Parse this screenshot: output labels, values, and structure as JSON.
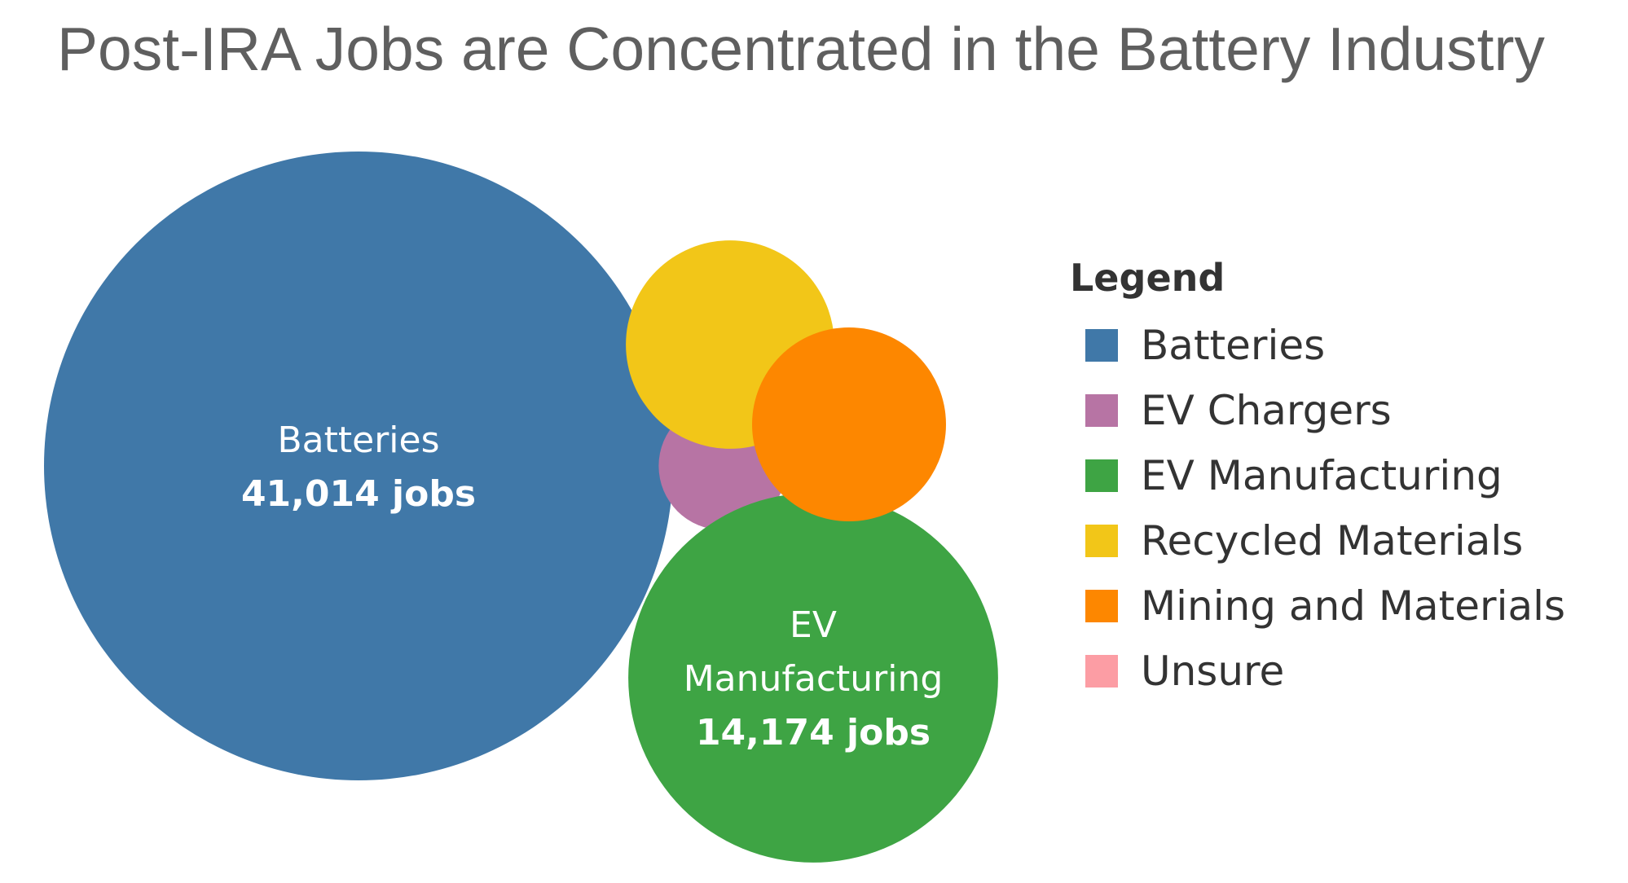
{
  "chart_data": {
    "type": "bubble",
    "title": "Post-IRA Jobs are Concentrated in the Battery Industry",
    "legend_title": "Legend",
    "legend_position": "right",
    "series": [
      {
        "name": "Batteries",
        "value": 41014,
        "color": "#4078a8",
        "label": "Batteries",
        "value_label": "41,014 jobs"
      },
      {
        "name": "EV Chargers",
        "value": 1700,
        "color": "#b774a4",
        "label": "",
        "value_label": ""
      },
      {
        "name": "EV Manufacturing",
        "value": 14174,
        "color": "#3ea444",
        "label": "EV Manufacturing",
        "value_label": "14,174 jobs"
      },
      {
        "name": "Recycled Materials",
        "value": 4500,
        "color": "#f2c618",
        "label": "",
        "value_label": ""
      },
      {
        "name": "Mining and Materials",
        "value": 3900,
        "color": "#fd8700",
        "label": "",
        "value_label": ""
      },
      {
        "name": "Unsure",
        "value": 0,
        "color": "#fc9da4",
        "label": "",
        "value_label": ""
      }
    ]
  }
}
